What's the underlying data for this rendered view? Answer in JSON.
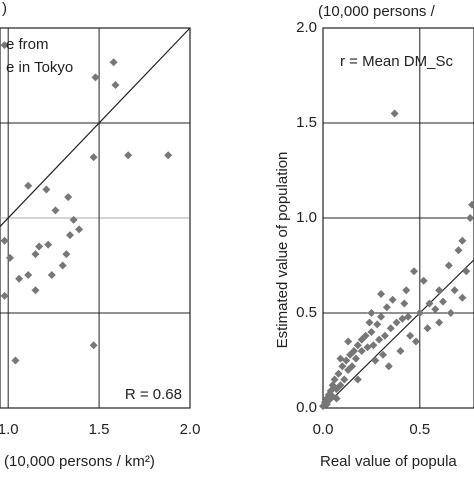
{
  "chart_data": [
    {
      "type": "scatter",
      "ylabel": ")",
      "xlabel": "(10,000 persons / km²)",
      "annotations": [
        "e from",
        "e in Tokyo",
        "R = 0.68"
      ],
      "color": "#777777",
      "x": [
        0.98,
        1.58,
        1.48,
        1.59,
        1.66,
        1.47,
        1.88,
        1.11,
        1.33,
        1.21,
        1.26,
        1.36,
        1.34,
        1.39,
        1.22,
        1.17,
        1.15,
        1.32,
        1.01,
        1.11,
        1.06,
        1.24,
        1.3,
        0.98,
        1.15,
        1.04,
        1.47,
        0.98
      ],
      "y": [
        1.91,
        1.82,
        1.74,
        1.7,
        1.33,
        1.32,
        1.33,
        1.17,
        1.11,
        1.15,
        1.04,
        0.99,
        0.91,
        0.94,
        0.86,
        0.85,
        0.81,
        0.81,
        0.79,
        0.7,
        0.68,
        0.7,
        0.75,
        0.59,
        0.62,
        0.25,
        0.33,
        0.88
      ],
      "xlim": [
        0.955,
        2.0
      ],
      "ylim": [
        0,
        2.0
      ],
      "xticks": [
        {
          "value": 1,
          "label": "1.0"
        },
        1.5,
        {
          "value": 2,
          "label": "2.0"
        }
      ],
      "yticks": [
        0.5,
        1,
        1.5
      ],
      "grid": true
    },
    {
      "type": "scatter",
      "title": "(10,000 persons / ",
      "xlabel": "Real value of popula",
      "ylabel": "Estimated value of population",
      "annotations": [
        "r = Mean DM_Sc"
      ],
      "color": "#777777",
      "x": [
        0.37,
        0.77,
        0.76,
        0.72,
        0.7,
        0.65,
        0.6,
        0.55,
        0.47,
        0.52,
        0.43,
        0.42,
        0.36,
        0.33,
        0.3,
        0.28,
        0.25,
        0.22,
        0.2,
        0.18,
        0.16,
        0.14,
        0.12,
        0.1,
        0.08,
        0.06,
        0.05,
        0.04,
        0.03,
        0.02,
        0.01,
        0.0,
        0.02,
        0.03,
        0.05,
        0.07,
        0.09,
        0.11,
        0.13,
        0.15,
        0.17,
        0.2,
        0.23,
        0.26,
        0.29,
        0.32,
        0.35,
        0.38,
        0.41,
        0.44,
        0.5,
        0.58,
        0.62,
        0.68,
        0.74,
        0.31,
        0.27,
        0.45,
        0.54,
        0.6,
        0.66,
        0.24,
        0.13,
        0.09,
        0.07,
        0.18,
        0.34,
        0.4,
        0.48,
        0.72,
        0.3,
        0.25
      ],
      "y": [
        1.55,
        1.07,
        1.0,
        0.88,
        0.83,
        0.75,
        0.62,
        0.55,
        0.72,
        0.67,
        0.62,
        0.55,
        0.57,
        0.53,
        0.48,
        0.44,
        0.4,
        0.38,
        0.36,
        0.33,
        0.3,
        0.28,
        0.25,
        0.22,
        0.18,
        0.15,
        0.12,
        0.09,
        0.07,
        0.05,
        0.03,
        0.01,
        0.02,
        0.04,
        0.06,
        0.1,
        0.12,
        0.15,
        0.2,
        0.22,
        0.26,
        0.3,
        0.32,
        0.33,
        0.36,
        0.38,
        0.42,
        0.45,
        0.47,
        0.48,
        0.5,
        0.52,
        0.56,
        0.62,
        0.72,
        0.28,
        0.25,
        0.38,
        0.42,
        0.45,
        0.5,
        0.45,
        0.35,
        0.26,
        0.05,
        0.15,
        0.22,
        0.3,
        0.35,
        0.58,
        0.6,
        0.5
      ],
      "xlim": [
        0,
        0.78
      ],
      "ylim": [
        0,
        2.0
      ],
      "xticks": [
        {
          "value": 0,
          "label": "0.0"
        },
        0.5
      ],
      "yticks": [
        {
          "value": 0,
          "label": "0.0"
        },
        0.5,
        {
          "value": 1,
          "label": "1.0"
        },
        1.5,
        {
          "value": 2,
          "label": "2.0"
        }
      ],
      "grid": true
    }
  ]
}
